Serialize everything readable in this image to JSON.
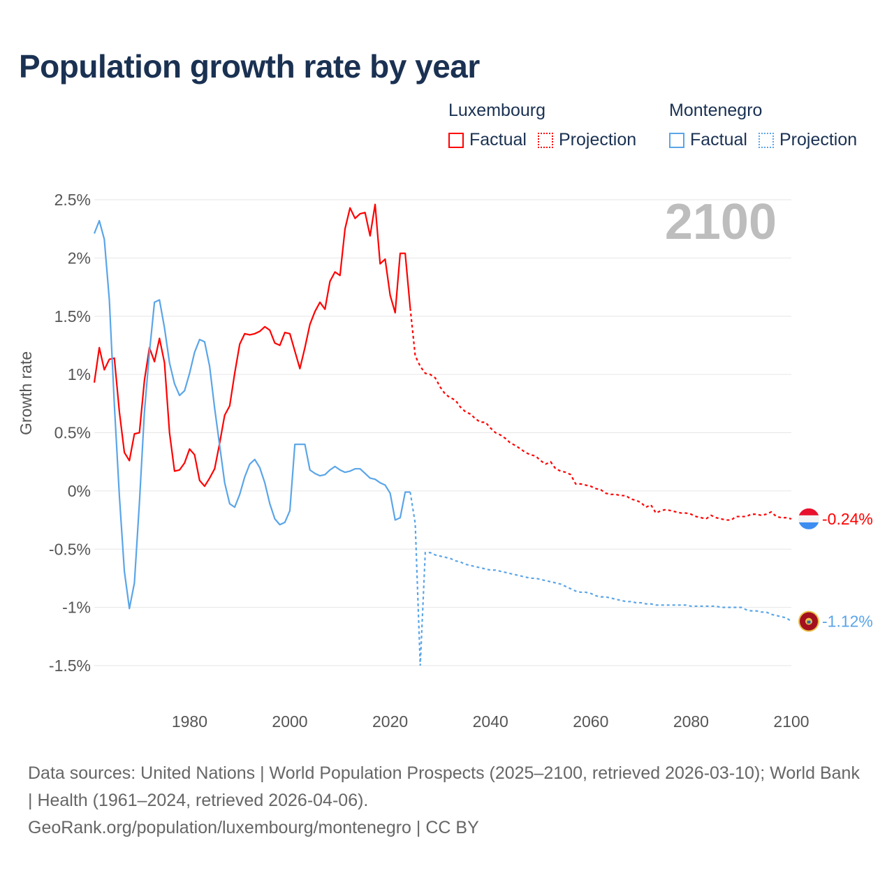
{
  "title": "Population growth rate by year",
  "legend": {
    "groups": [
      {
        "country": "Luxembourg",
        "factual": "Factual",
        "projection": "Projection",
        "color": "#ff0000"
      },
      {
        "country": "Montenegro",
        "factual": "Factual",
        "projection": "Projection",
        "color": "#5aa5e8"
      }
    ]
  },
  "footer": {
    "sources": "Data sources: United Nations | World Population Prospects (2025–2100, retrieved 2026-03-10); World Bank | Health (1961–2024, retrieved 2026-04-06).",
    "link": "GeoRank.org/population/luxembourg/montenegro | CC BY"
  },
  "chart_data": {
    "type": "line",
    "title": "Population growth rate by year",
    "ylabel": "Growth rate",
    "xlabel": "",
    "year_watermark": "2100",
    "xlim": [
      1961,
      2100
    ],
    "ylim": [
      -1.5,
      2.5
    ],
    "x_ticks": [
      1980,
      2000,
      2020,
      2040,
      2060,
      2080,
      2100
    ],
    "y_ticks": [
      {
        "value": 2.5,
        "label": "2.5%"
      },
      {
        "value": 2,
        "label": "2%"
      },
      {
        "value": 1.5,
        "label": "1.5%"
      },
      {
        "value": 1,
        "label": "1%"
      },
      {
        "value": 0.5,
        "label": "0.5%"
      },
      {
        "value": 0,
        "label": "0%"
      },
      {
        "value": -0.5,
        "label": "-0.5%"
      },
      {
        "value": -1,
        "label": "-1%"
      },
      {
        "value": -1.5,
        "label": "-1.5%"
      }
    ],
    "grid": true,
    "series": [
      {
        "name": "Luxembourg",
        "color": "#ff0000",
        "end_label": "-0.24%",
        "flag": "luxembourg-flag",
        "factual": {
          "start": 1961,
          "values": [
            0.93,
            1.23,
            1.04,
            1.13,
            1.14,
            0.68,
            0.33,
            0.26,
            0.49,
            0.5,
            0.95,
            1.23,
            1.11,
            1.31,
            1.1,
            0.5,
            0.17,
            0.18,
            0.24,
            0.36,
            0.31,
            0.09,
            0.04,
            0.11,
            0.19,
            0.41,
            0.65,
            0.73,
            1.01,
            1.26,
            1.35,
            1.34,
            1.35,
            1.37,
            1.41,
            1.38,
            1.27,
            1.25,
            1.36,
            1.35,
            1.2,
            1.05,
            1.23,
            1.43,
            1.54,
            1.62,
            1.56,
            1.8,
            1.88,
            1.85,
            2.25,
            2.43,
            2.34,
            2.38,
            2.39,
            2.19,
            2.46,
            1.95,
            1.99,
            1.68,
            1.53,
            2.04,
            2.04,
            1.57
          ]
        },
        "projection": {
          "start": 2025,
          "values": [
            1.16,
            1.07,
            1.01,
            1.0,
            0.97,
            0.89,
            0.83,
            0.8,
            0.78,
            0.72,
            0.68,
            0.66,
            0.62,
            0.59,
            0.59,
            0.54,
            0.5,
            0.48,
            0.45,
            0.41,
            0.39,
            0.36,
            0.33,
            0.31,
            0.3,
            0.26,
            0.23,
            0.25,
            0.19,
            0.17,
            0.16,
            0.14,
            0.06,
            0.06,
            0.05,
            0.04,
            0.02,
            0.01,
            -0.02,
            -0.03,
            -0.03,
            -0.04,
            -0.04,
            -0.07,
            -0.08,
            -0.1,
            -0.14,
            -0.12,
            -0.19,
            -0.17,
            -0.16,
            -0.17,
            -0.18,
            -0.19,
            -0.19,
            -0.2,
            -0.22,
            -0.23,
            -0.24,
            -0.21,
            -0.23,
            -0.24,
            -0.25,
            -0.25,
            -0.22,
            -0.22,
            -0.22,
            -0.2,
            -0.2,
            -0.21,
            -0.2,
            -0.18,
            -0.22,
            -0.23,
            -0.23,
            -0.24
          ]
        }
      },
      {
        "name": "Montenegro",
        "color": "#5aa5e8",
        "end_label": "-1.12%",
        "flag": "montenegro-flag",
        "factual": {
          "start": 1961,
          "values": [
            2.21,
            2.32,
            2.16,
            1.64,
            0.74,
            -0.04,
            -0.69,
            -1.01,
            -0.79,
            -0.1,
            0.68,
            1.19,
            1.62,
            1.64,
            1.4,
            1.1,
            0.92,
            0.82,
            0.86,
            1.01,
            1.19,
            1.3,
            1.28,
            1.07,
            0.71,
            0.39,
            0.07,
            -0.11,
            -0.14,
            -0.03,
            0.12,
            0.23,
            0.27,
            0.2,
            0.07,
            -0.11,
            -0.24,
            -0.29,
            -0.27,
            -0.17,
            0.4,
            0.4,
            0.4,
            0.18,
            0.15,
            0.13,
            0.14,
            0.18,
            0.21,
            0.18,
            0.16,
            0.17,
            0.19,
            0.19,
            0.15,
            0.11,
            0.1,
            0.07,
            0.05,
            -0.02,
            -0.25,
            -0.23,
            -0.01,
            -0.01
          ]
        },
        "projection": {
          "start": 2025,
          "values": [
            -0.28,
            -1.5,
            -0.53,
            -0.53,
            -0.55,
            -0.56,
            -0.57,
            -0.58,
            -0.6,
            -0.61,
            -0.63,
            -0.64,
            -0.65,
            -0.66,
            -0.67,
            -0.68,
            -0.68,
            -0.69,
            -0.7,
            -0.71,
            -0.72,
            -0.73,
            -0.74,
            -0.75,
            -0.75,
            -0.76,
            -0.77,
            -0.78,
            -0.79,
            -0.8,
            -0.82,
            -0.84,
            -0.86,
            -0.87,
            -0.87,
            -0.88,
            -0.9,
            -0.91,
            -0.91,
            -0.92,
            -0.93,
            -0.94,
            -0.95,
            -0.95,
            -0.96,
            -0.96,
            -0.97,
            -0.97,
            -0.98,
            -0.98,
            -0.98,
            -0.98,
            -0.98,
            -0.98,
            -0.98,
            -0.99,
            -0.99,
            -0.99,
            -0.99,
            -0.99,
            -0.99,
            -1.0,
            -1.0,
            -1.0,
            -1.0,
            -1.0,
            -1.02,
            -1.03,
            -1.03,
            -1.04,
            -1.04,
            -1.06,
            -1.07,
            -1.08,
            -1.09,
            -1.12
          ]
        }
      }
    ]
  }
}
